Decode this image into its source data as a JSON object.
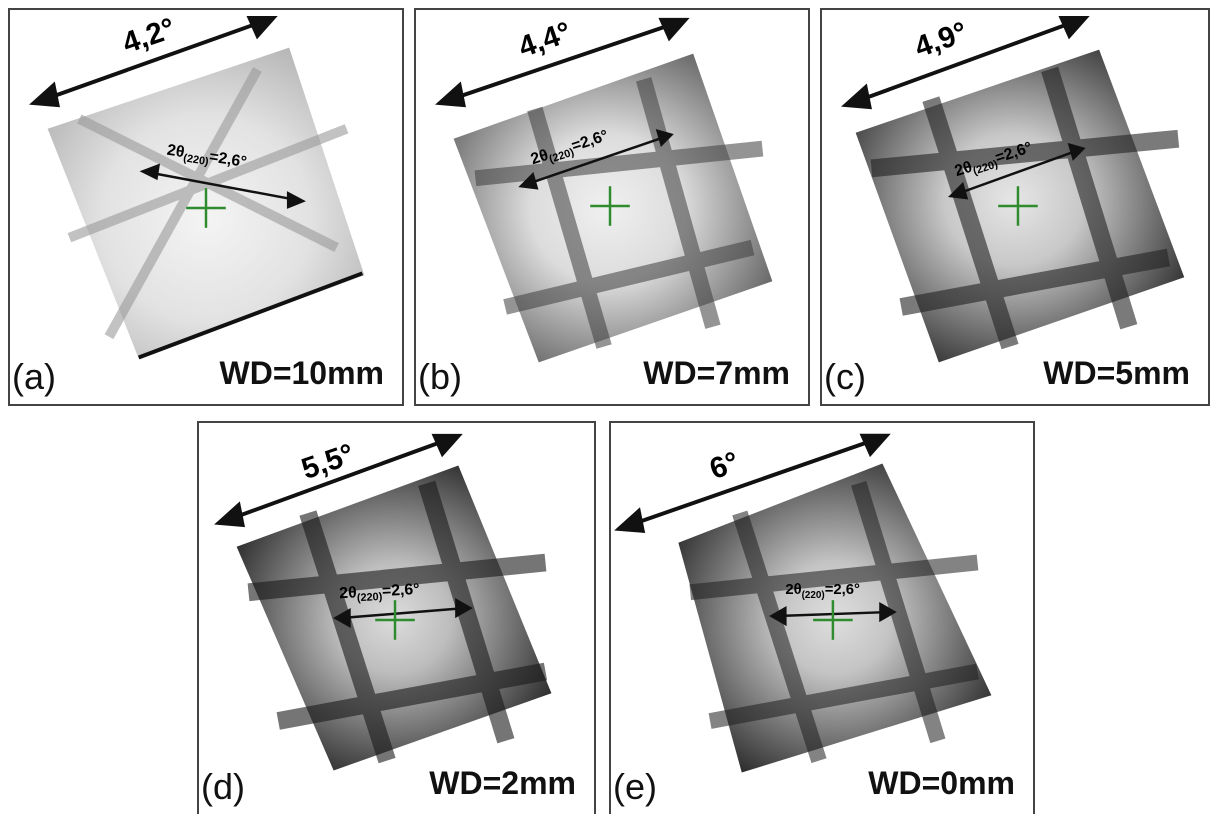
{
  "panels": [
    {
      "id": "a",
      "tag": "(a)",
      "angle": "4,2°",
      "inner_label": "2θ(220)=2,6°",
      "wd": "WD=10mm",
      "darkness": 0.25
    },
    {
      "id": "b",
      "tag": "(b)",
      "angle": "4,4°",
      "inner_label": "2θ(220)=2,6°",
      "wd": "WD=7mm",
      "darkness": 0.55
    },
    {
      "id": "c",
      "tag": "(c)",
      "angle": "4,9°",
      "inner_label": "2θ(220)=2,6°",
      "wd": "WD=5mm",
      "darkness": 0.75
    },
    {
      "id": "d",
      "tag": "(d)",
      "angle": "5,5°",
      "inner_label": "2θ(220)=2,6°",
      "wd": "WD=2mm",
      "darkness": 0.85
    },
    {
      "id": "e",
      "tag": "(e)",
      "angle": "6°",
      "inner_label": "2θ(220)=2,6°",
      "wd": "WD=0mm",
      "darkness": 0.8
    }
  ],
  "colors": {
    "crosshair": "#2e8b2e",
    "arrow": "#111111"
  },
  "inner_label_parts": {
    "theta": "2θ",
    "sub": "(220)",
    "value": "=2,6°"
  }
}
